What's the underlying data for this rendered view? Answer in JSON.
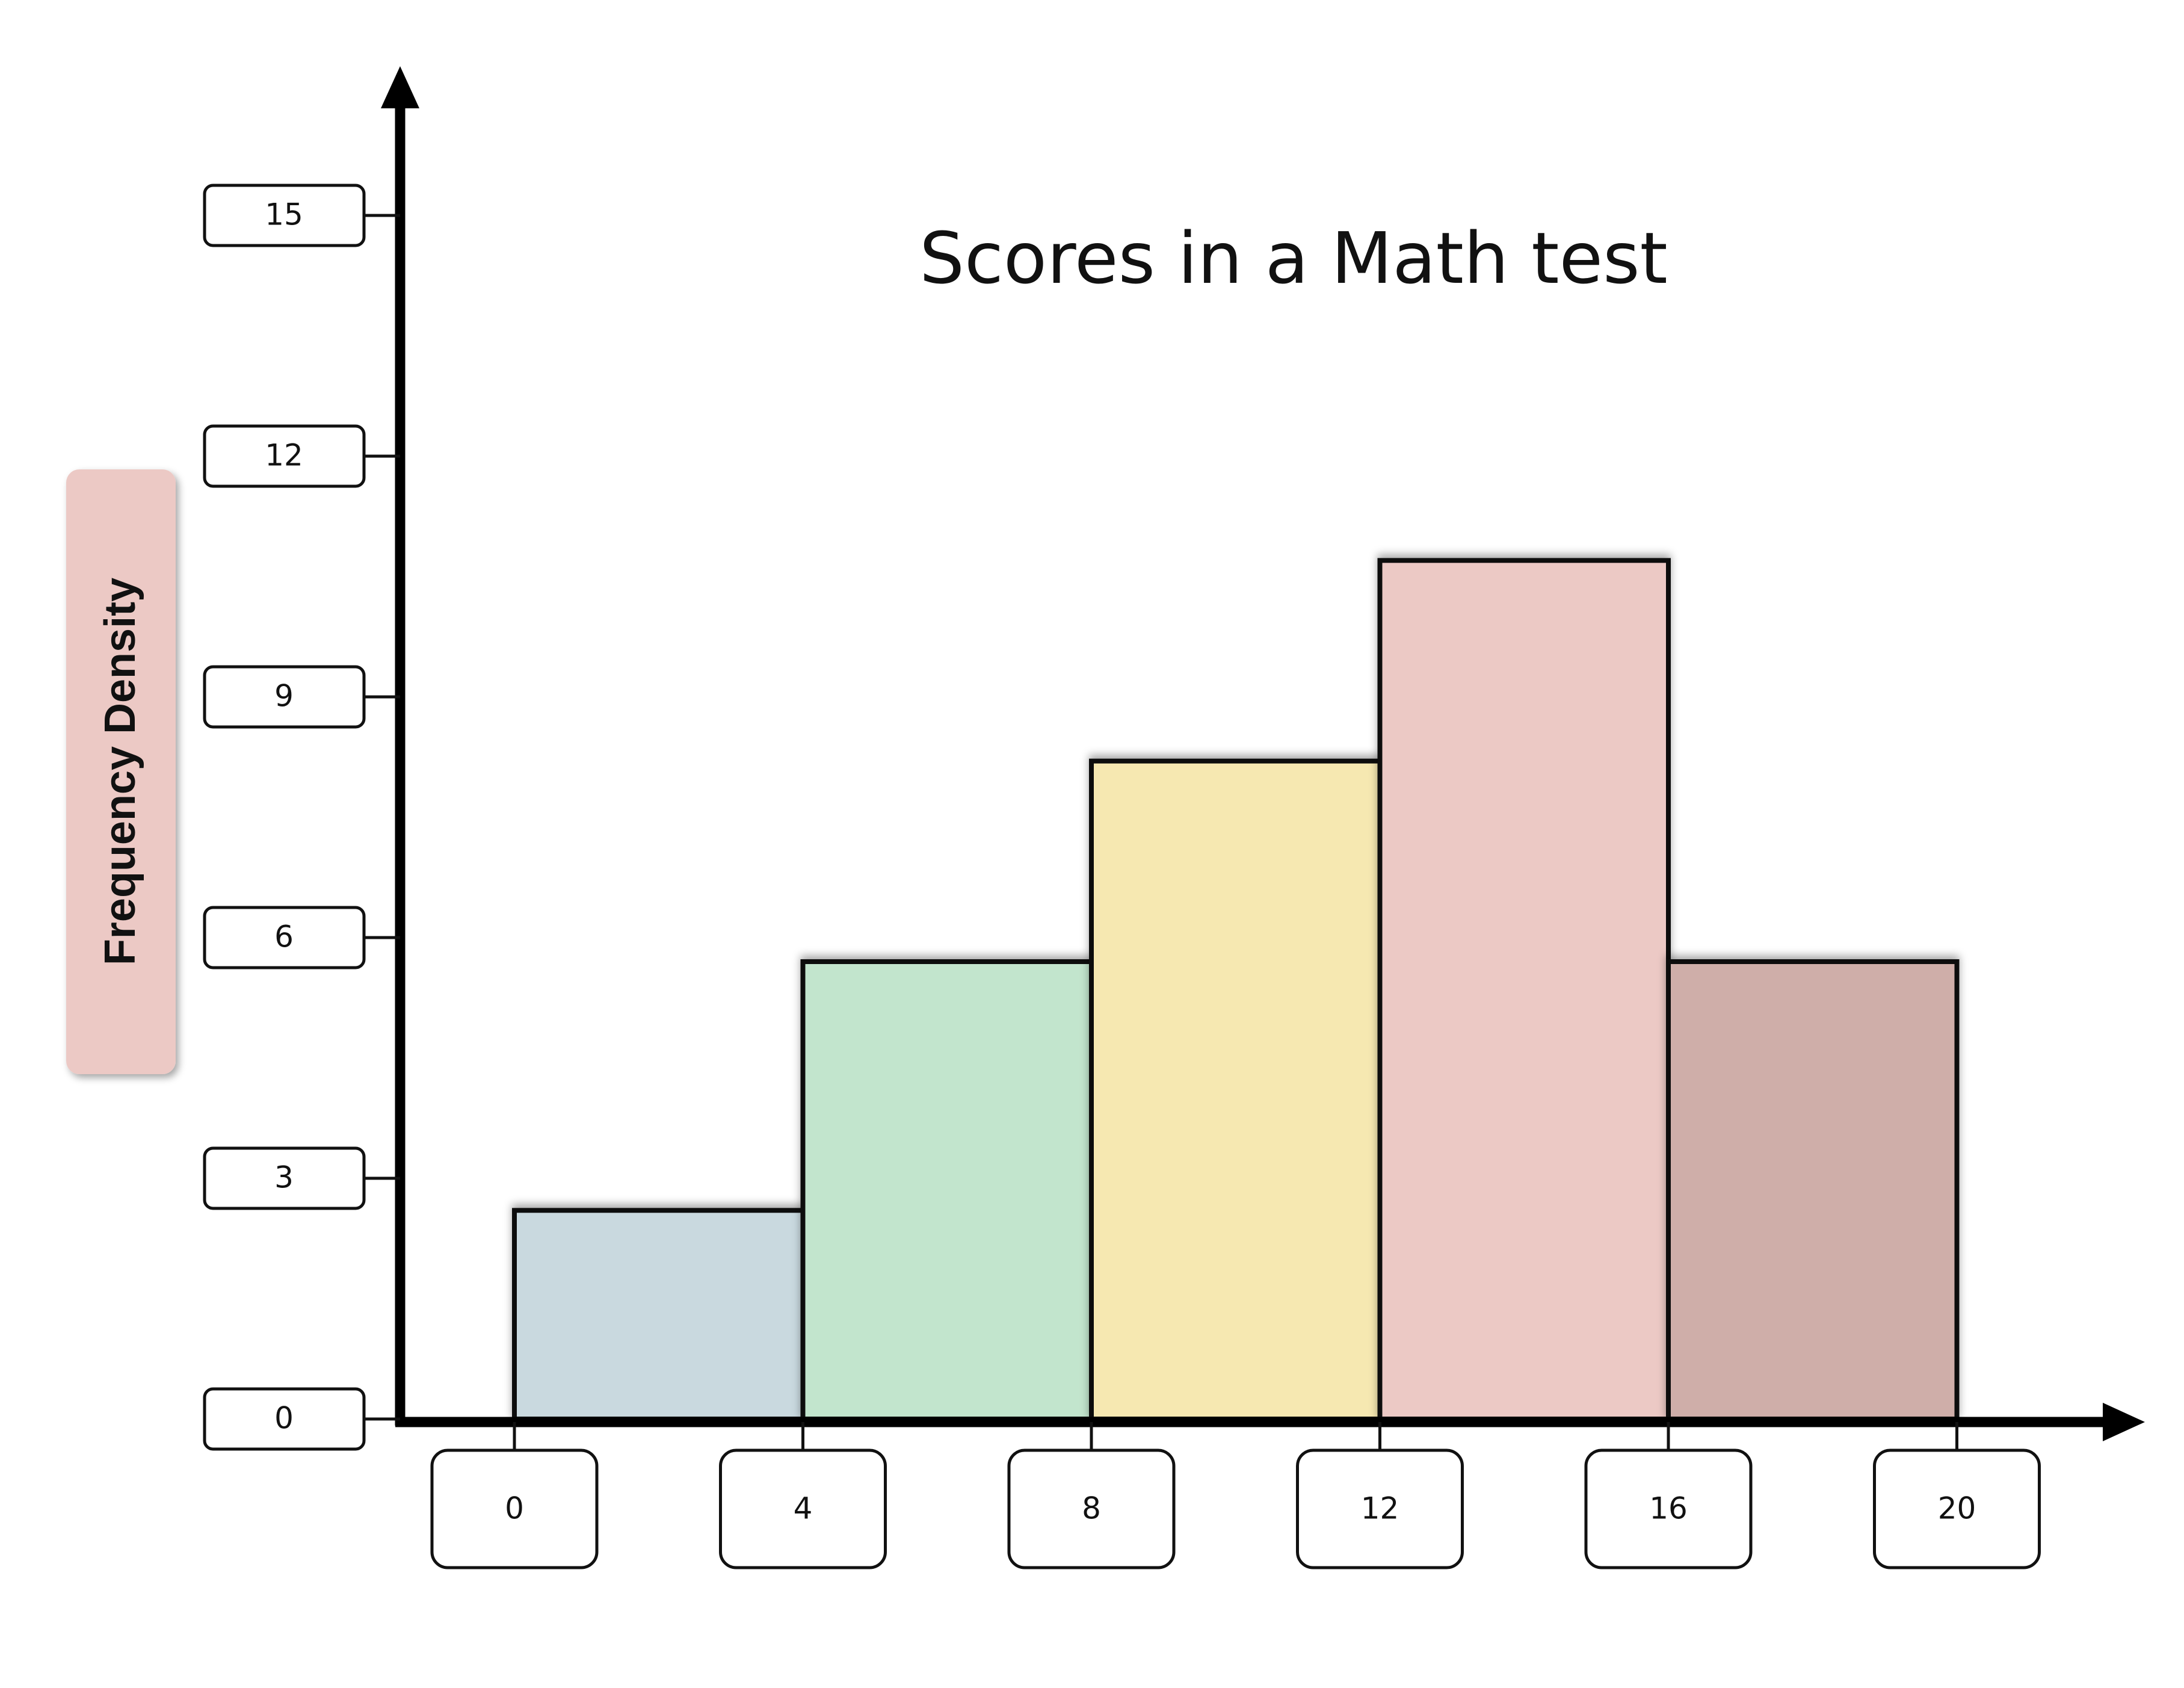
{
  "chart_data": {
    "type": "bar",
    "title": "Scores in a Math test",
    "xlabel": "",
    "ylabel": "Frequency Density",
    "x_ticks": [
      "0",
      "4",
      "8",
      "12",
      "16",
      "20"
    ],
    "y_ticks": [
      "0",
      "3",
      "6",
      "9",
      "12",
      "15"
    ],
    "xlim": [
      0,
      20
    ],
    "ylim": [
      0,
      15
    ],
    "bins": [
      {
        "from": 0,
        "to": 4,
        "value": 2.6,
        "color": "#c9d9df"
      },
      {
        "from": 4,
        "to": 8,
        "value": 5.7,
        "color": "#c2e5cd"
      },
      {
        "from": 8,
        "to": 12,
        "value": 8.2,
        "color": "#f6e8b1"
      },
      {
        "from": 12,
        "to": 16,
        "value": 10.7,
        "color": "#ecc9c5"
      },
      {
        "from": 16,
        "to": 20,
        "value": 5.7,
        "color": "#cfaea9"
      }
    ],
    "grid": false,
    "legend": "none",
    "ylabel_background": "#ecc9c5"
  }
}
